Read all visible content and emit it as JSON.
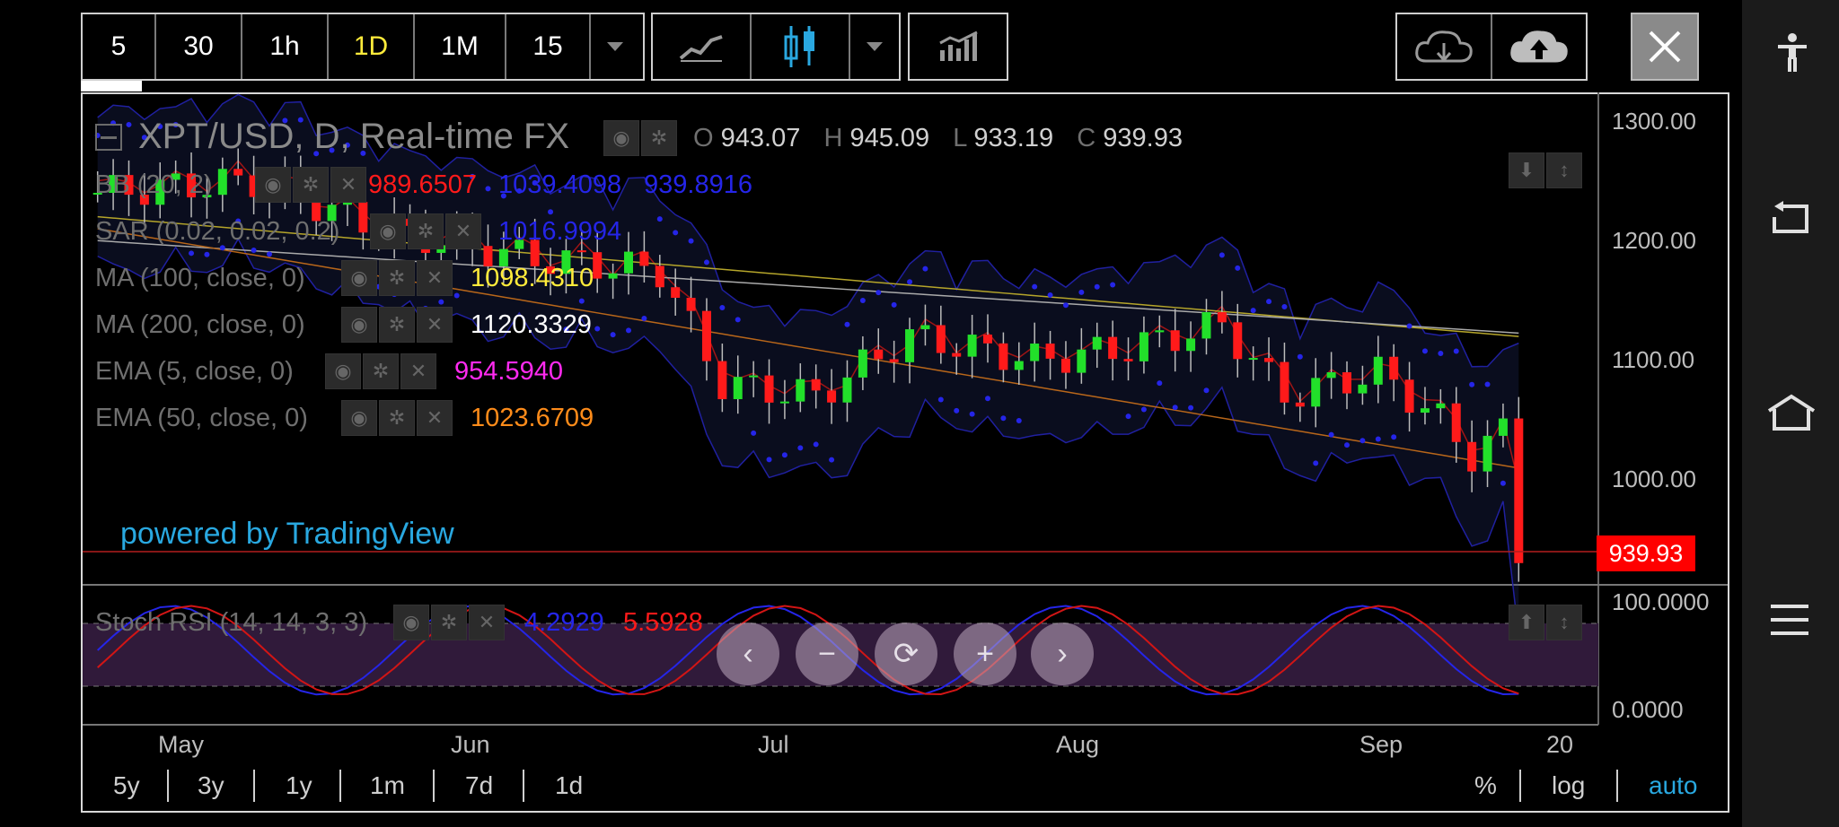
{
  "toolbar": {
    "intervals": [
      "5",
      "30",
      "1h",
      "1D",
      "1M",
      "15"
    ],
    "active_interval": "1D"
  },
  "chart": {
    "symbol_title": "XPT/USD, D, Real-time FX",
    "ohlc": {
      "o_label": "O",
      "o": "943.07",
      "h_label": "H",
      "h": "945.09",
      "l_label": "L",
      "l": "933.19",
      "c_label": "C",
      "c": "939.93"
    },
    "indicators": [
      {
        "name": "BB (20, 2)",
        "values": [
          "989.6507",
          "1039.4098",
          "939.8916"
        ],
        "colors": [
          "#ff1a1a",
          "#1f1fe6",
          "#1f1fe6"
        ]
      },
      {
        "name": "SAR (0.02, 0.02, 0.2)",
        "values": [
          "1016.9994"
        ],
        "colors": [
          "#1f1fe6"
        ]
      },
      {
        "name": "MA (100, close, 0)",
        "values": [
          "1098.4310"
        ],
        "colors": [
          "#ffeb3b"
        ]
      },
      {
        "name": "MA (200, close, 0)",
        "values": [
          "1120.3329"
        ],
        "colors": [
          "#ffffff"
        ]
      },
      {
        "name": "EMA (5, close, 0)",
        "values": [
          "954.5940"
        ],
        "colors": [
          "#ff2af0"
        ]
      },
      {
        "name": "EMA (50, close, 0)",
        "values": [
          "1023.6709"
        ],
        "colors": [
          "#ff8c1a"
        ]
      }
    ],
    "watermark": "powered by TradingView",
    "price_axis": [
      "1300.00",
      "1200.00",
      "1100.00",
      "1000.00"
    ],
    "last_price": "939.93",
    "time_axis": [
      "May",
      "Jun",
      "Jul",
      "Aug",
      "Sep",
      "20"
    ],
    "stoch": {
      "name": "Stoch RSI (14, 14, 3, 3)",
      "k": "4.2929",
      "d": "5.5928",
      "axis": [
        "100.0000",
        "0.0000"
      ]
    }
  },
  "range_tabs": [
    "5y",
    "3y",
    "1y",
    "1m",
    "7d",
    "1d"
  ],
  "scale_tabs": [
    "%",
    "log",
    "auto"
  ],
  "colors": {
    "up": "#22e02a",
    "down": "#ff1a1a",
    "accent": "#2aa8e0",
    "auto": "#29a8e0"
  },
  "icons": {
    "line_chart": "line-chart-icon",
    "candles": "candlestick-icon",
    "indicators": "indicators-icon",
    "cloud_down": "cloud-download-icon",
    "cloud_up": "cloud-upload-icon",
    "close": "close-icon",
    "accessibility": "accessibility-icon",
    "back": "back-icon",
    "home": "home-icon",
    "menu": "menu-icon"
  }
}
